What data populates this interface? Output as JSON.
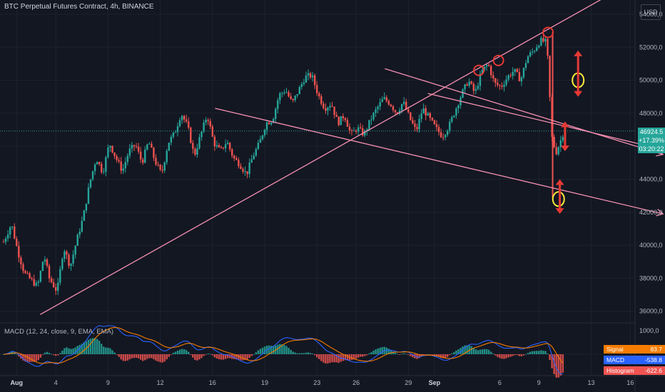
{
  "header": {
    "title": "BTC Perpetual Futures Contract, 4h, BINANCE"
  },
  "currency": "USD",
  "price_tag": {
    "price": "46924.5",
    "change": "+17.39%",
    "countdown": "03:20:22"
  },
  "macd_panel": {
    "title": "MACD (12, 24, close, 9, EMA, EMA)",
    "scale_label": "1000,0",
    "signal": {
      "label": "Signal",
      "value": "83.7",
      "color": "#f57c00"
    },
    "macd": {
      "label": "MACD",
      "value": "-538.8",
      "color": "#2962ff"
    },
    "histogram": {
      "label": "Histogram",
      "value": "-622.6",
      "color": "#ef5350"
    }
  },
  "colors": {
    "up": "#26a69a",
    "down": "#ef5350",
    "trendline": "#f48fb1",
    "annotation": "#e53935",
    "highlight": "#ffeb3b",
    "grid": "#1e222d",
    "background": "#131722"
  },
  "chart_data": {
    "type": "candlestick",
    "symbol": "BTC Perpetual Futures Contract",
    "interval": "4h",
    "exchange": "BINANCE",
    "ylim": [
      35800,
      54800
    ],
    "y_ticks": [
      "54000,0",
      "52000,0",
      "50000,0",
      "48000,0",
      "46000,0",
      "44000,0",
      "42000,0",
      "40000,0",
      "38000,0",
      "36000,0"
    ],
    "y_tick_values": [
      54000,
      52000,
      50000,
      48000,
      46000,
      44000,
      42000,
      40000,
      38000,
      36000
    ],
    "x_ticks": [
      "Aug",
      "4",
      "9",
      "12",
      "16",
      "19",
      "23",
      "26",
      "29",
      "Sep",
      "6",
      "9",
      "13",
      "16"
    ],
    "x_tick_days": [
      1,
      4,
      8,
      12,
      16,
      20,
      24,
      27,
      31,
      33,
      38,
      41,
      45,
      48
    ],
    "price_path": [
      [
        0,
        40200
      ],
      [
        0.6,
        41300
      ],
      [
        1.1,
        39600
      ],
      [
        1.6,
        38300
      ],
      [
        2.6,
        37500
      ],
      [
        3.1,
        39400
      ],
      [
        3.5,
        38000
      ],
      [
        4.1,
        37200
      ],
      [
        4.6,
        39900
      ],
      [
        5.1,
        38700
      ],
      [
        5.6,
        40300
      ],
      [
        6.1,
        41700
      ],
      [
        6.6,
        43800
      ],
      [
        7.1,
        45300
      ],
      [
        7.6,
        44400
      ],
      [
        8.1,
        46200
      ],
      [
        8.6,
        45300
      ],
      [
        9.1,
        44500
      ],
      [
        9.6,
        45700
      ],
      [
        10.1,
        46100
      ],
      [
        10.6,
        45000
      ],
      [
        11.1,
        46300
      ],
      [
        11.6,
        45100
      ],
      [
        12.1,
        44300
      ],
      [
        12.6,
        46200
      ],
      [
        13.1,
        46800
      ],
      [
        13.6,
        48000
      ],
      [
        14.1,
        47200
      ],
      [
        14.6,
        45400
      ],
      [
        15.1,
        46700
      ],
      [
        15.6,
        47900
      ],
      [
        16.1,
        46200
      ],
      [
        16.6,
        45700
      ],
      [
        17.1,
        46300
      ],
      [
        17.6,
        45300
      ],
      [
        18.1,
        44900
      ],
      [
        18.6,
        44300
      ],
      [
        19.1,
        45400
      ],
      [
        19.6,
        46200
      ],
      [
        20.1,
        47400
      ],
      [
        20.6,
        47600
      ],
      [
        21.1,
        49100
      ],
      [
        21.6,
        49400
      ],
      [
        22.1,
        48600
      ],
      [
        22.6,
        49400
      ],
      [
        23.1,
        50200
      ],
      [
        23.6,
        50300
      ],
      [
        24.1,
        49100
      ],
      [
        24.6,
        48300
      ],
      [
        25.1,
        48600
      ],
      [
        25.6,
        47400
      ],
      [
        26.1,
        47900
      ],
      [
        26.6,
        46700
      ],
      [
        27.1,
        47100
      ],
      [
        27.6,
        46700
      ],
      [
        28.1,
        47600
      ],
      [
        28.6,
        48300
      ],
      [
        29.1,
        48900
      ],
      [
        29.6,
        48600
      ],
      [
        30.1,
        48000
      ],
      [
        30.6,
        48700
      ],
      [
        31.1,
        47700
      ],
      [
        31.6,
        46900
      ],
      [
        32.1,
        48300
      ],
      [
        32.6,
        47700
      ],
      [
        33.1,
        47100
      ],
      [
        33.6,
        46600
      ],
      [
        34.1,
        47200
      ],
      [
        34.6,
        48200
      ],
      [
        35.1,
        49200
      ],
      [
        35.6,
        50000
      ],
      [
        36.1,
        49200
      ],
      [
        36.6,
        50500
      ],
      [
        37.1,
        51000
      ],
      [
        37.6,
        49800
      ],
      [
        38.1,
        49600
      ],
      [
        38.6,
        50200
      ],
      [
        39.1,
        50600
      ],
      [
        39.6,
        50000
      ],
      [
        40.1,
        51400
      ],
      [
        40.6,
        51800
      ],
      [
        41.1,
        52400
      ],
      [
        41.6,
        52300
      ],
      [
        42.0,
        46500
      ],
      [
        42.3,
        45600
      ],
      [
        42.6,
        46200
      ],
      [
        42.9,
        46900
      ]
    ],
    "trendlines": [
      {
        "name": "ascending-support",
        "from": {
          "day": 2.8,
          "price": 35800
        },
        "to": {
          "day": 48.7,
          "price": 56200
        }
      },
      {
        "name": "descending-upper",
        "from": {
          "day": 29.2,
          "price": 50700
        },
        "to": {
          "day": 50.5,
          "price": 45500
        }
      },
      {
        "name": "descending-middle",
        "from": {
          "day": 16.2,
          "price": 48300
        },
        "to": {
          "day": 50.5,
          "price": 41900
        }
      },
      {
        "name": "descending-lower",
        "from": {
          "day": 32.5,
          "price": 49200
        },
        "to": {
          "day": 50.5,
          "price": 45800
        }
      }
    ],
    "markers": [
      {
        "type": "circle",
        "day": 36.4,
        "price": 50600
      },
      {
        "type": "circle",
        "day": 37.9,
        "price": 51200
      },
      {
        "type": "circle",
        "day": 41.7,
        "price": 52900
      },
      {
        "type": "circle-yellow",
        "day": 44.0,
        "price": 50000
      },
      {
        "type": "circle-yellow",
        "day": 42.5,
        "price": 42800
      },
      {
        "type": "double-arrow",
        "day": 44.0,
        "from_price": 49000,
        "to_price": 51800
      },
      {
        "type": "double-arrow",
        "day": 43.0,
        "from_price": 45700,
        "to_price": 47500
      },
      {
        "type": "double-arrow",
        "day": 42.6,
        "from_price": 41900,
        "to_price": 44000
      }
    ]
  }
}
